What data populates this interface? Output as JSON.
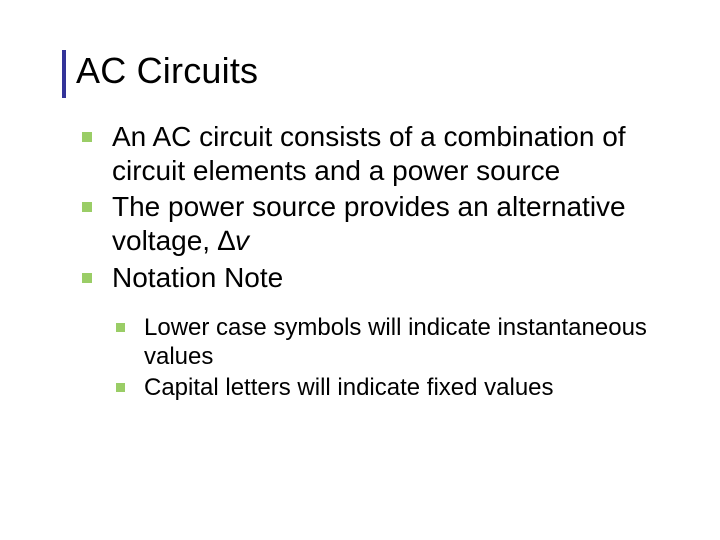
{
  "colors": {
    "background": "#ffffff",
    "title_rule": "#333399",
    "bullet_square": "#9acd66",
    "text": "#000000"
  },
  "typography": {
    "title_fontsize": 36,
    "bullet_fontsize": 28,
    "sub_bullet_fontsize": 24,
    "font_family": "Arial"
  },
  "title": "AC Circuits",
  "bullets": [
    "An AC circuit consists of a combination of circuit elements and a power source",
    "The power source provides an alternative voltage, ∆v",
    "Notation Note"
  ],
  "sub_bullets": [
    "Lower case symbols will indicate instantaneous values",
    "Capital letters will indicate fixed values"
  ]
}
